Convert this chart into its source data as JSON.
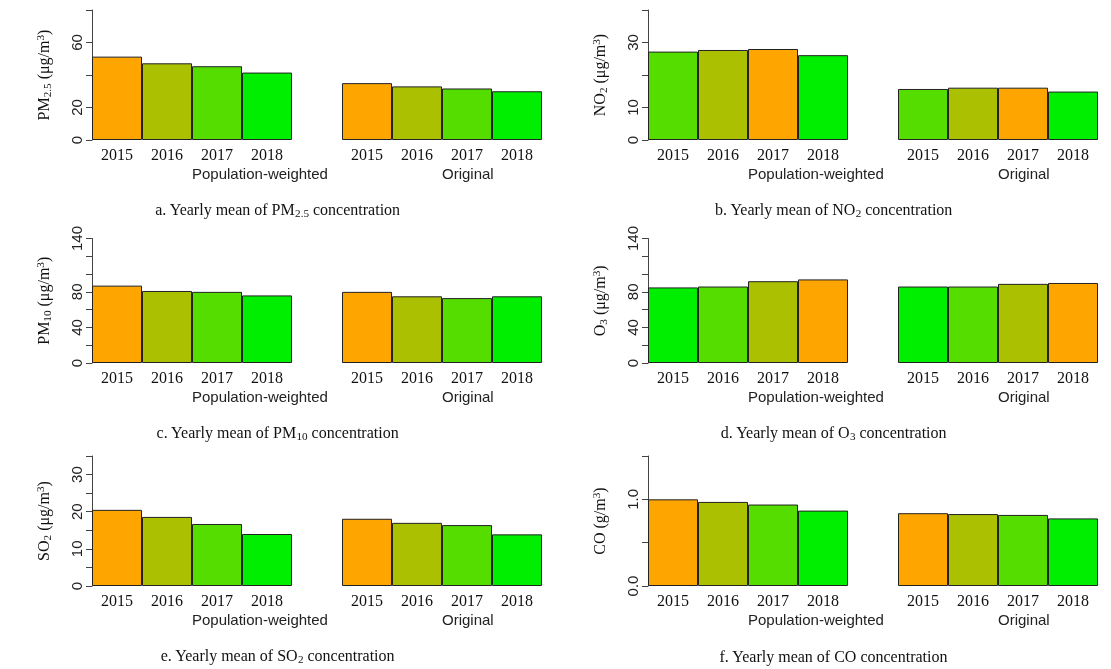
{
  "chart_data": [
    {
      "type": "bar",
      "title": "a. Yearly mean of PM$_{2.5}$ concentration",
      "ylabel": "PM$_{2.5}$ (μg/m$^{3}$)",
      "categories": [
        "2015",
        "2016",
        "2017",
        "2018",
        null,
        "2015",
        "2016",
        "2017",
        "2018"
      ],
      "values": [
        51.3,
        47.2,
        45.4,
        41.5,
        null,
        35.0,
        33.0,
        31.7,
        30.0
      ],
      "colors": [
        "#ffa500",
        "#aac000",
        "#55dd00",
        "#00ee00",
        null,
        "#ffa500",
        "#aac000",
        "#55dd00",
        "#00ee00"
      ],
      "ylim": [
        0,
        80
      ],
      "yticks": [
        0,
        20,
        {
          "value": 40,
          "label": null
        },
        60,
        {
          "value": 80,
          "label": null
        }
      ],
      "annotations": [
        "Population-weighted",
        "Original"
      ]
    },
    {
      "type": "bar",
      "title": "b. Yearly mean of NO$_{2}$ concentration",
      "ylabel": "NO$_{2}$ (μg/m$^{3}$)",
      "categories": [
        "2015",
        "2016",
        "2017",
        "2018",
        null,
        "2015",
        "2016",
        "2017",
        "2018"
      ],
      "values": [
        27.2,
        27.7,
        28.0,
        26.1,
        null,
        15.7,
        16.1,
        16.1,
        14.9
      ],
      "colors": [
        "#55dd00",
        "#aac000",
        "#ffa500",
        "#00ee00",
        null,
        "#55dd00",
        "#aac000",
        "#ffa500",
        "#00ee00"
      ],
      "ylim": [
        0,
        40
      ],
      "yticks": [
        0,
        10,
        {
          "value": 20,
          "label": null
        },
        30,
        {
          "value": 40,
          "label": null
        }
      ],
      "annotations": [
        "Population-weighted",
        "Original"
      ]
    },
    {
      "type": "bar",
      "title": "c. Yearly mean of PM$_{10}$ concentration",
      "ylabel": "PM$_{10}$ (μg/m$^{3}$)",
      "categories": [
        "2015",
        "2016",
        "2017",
        "2018",
        null,
        "2015",
        "2016",
        "2017",
        "2018"
      ],
      "values": [
        87,
        81,
        80,
        76,
        null,
        80,
        75,
        73,
        75
      ],
      "colors": [
        "#ffa500",
        "#aac000",
        "#55dd00",
        "#00ee00",
        null,
        "#ffa500",
        "#aac000",
        "#55dd00",
        "#00ee00"
      ],
      "ylim": [
        0,
        140
      ],
      "yticks": [
        0,
        {
          "value": 20,
          "label": null
        },
        40,
        {
          "value": 60,
          "label": null
        },
        80,
        {
          "value": 100,
          "label": null
        },
        {
          "value": 120,
          "label": null
        },
        140
      ],
      "annotations": [
        "Population-weighted",
        "Original"
      ]
    },
    {
      "type": "bar",
      "title": "d. Yearly mean of O$_{3}$ concentration",
      "ylabel": "O$_{3}$ (μg/m$^{3}$)",
      "categories": [
        "2015",
        "2016",
        "2017",
        "2018",
        null,
        "2015",
        "2016",
        "2017",
        "2018"
      ],
      "values": [
        85,
        86,
        92,
        94,
        null,
        86,
        86,
        89,
        90
      ],
      "colors": [
        "#00ee00",
        "#55dd00",
        "#aac000",
        "#ffa500",
        null,
        "#00ee00",
        "#55dd00",
        "#aac000",
        "#ffa500"
      ],
      "ylim": [
        0,
        140
      ],
      "yticks": [
        0,
        {
          "value": 20,
          "label": null
        },
        40,
        {
          "value": 60,
          "label": null
        },
        80,
        {
          "value": 100,
          "label": null
        },
        {
          "value": 120,
          "label": null
        },
        140
      ],
      "annotations": [
        "Population-weighted",
        "Original"
      ]
    },
    {
      "type": "bar",
      "title": "e. Yearly mean of SO$_{2}$ concentration",
      "ylabel": "SO$_{2}$ (μg/m$^{3}$)",
      "categories": [
        "2015",
        "2016",
        "2017",
        "2018",
        null,
        "2015",
        "2016",
        "2017",
        "2018"
      ],
      "values": [
        20.5,
        18.6,
        16.7,
        14.0,
        null,
        18.1,
        17.0,
        16.4,
        13.9
      ],
      "colors": [
        "#ffa500",
        "#aac000",
        "#55dd00",
        "#00ee00",
        null,
        "#ffa500",
        "#aac000",
        "#55dd00",
        "#00ee00"
      ],
      "ylim": [
        0,
        35
      ],
      "yticks": [
        0,
        {
          "value": 5,
          "label": null
        },
        10,
        {
          "value": 15,
          "label": null
        },
        20,
        {
          "value": 25,
          "label": null
        },
        30,
        {
          "value": 35,
          "label": null
        }
      ],
      "annotations": [
        "Population-weighted",
        "Original"
      ]
    },
    {
      "type": "bar",
      "title": "f. Yearly mean of CO concentration",
      "ylabel": "CO (g/m$^{3}$)",
      "categories": [
        "2015",
        "2016",
        "2017",
        "2018",
        null,
        "2015",
        "2016",
        "2017",
        "2018"
      ],
      "values": [
        1.0,
        0.97,
        0.94,
        0.87,
        null,
        0.84,
        0.83,
        0.82,
        0.78
      ],
      "colors": [
        "#ffa500",
        "#aac000",
        "#55dd00",
        "#00ee00",
        null,
        "#ffa500",
        "#aac000",
        "#55dd00",
        "#00ee00"
      ],
      "ylim": [
        0,
        1.5
      ],
      "yticks": [
        {
          "value": 0,
          "label": "0.0"
        },
        {
          "value": 0.5,
          "label": null
        },
        {
          "value": 1,
          "label": "1.0"
        },
        {
          "value": 1.5,
          "label": null
        }
      ],
      "annotations": [
        "Population-weighted",
        "Original"
      ]
    }
  ]
}
